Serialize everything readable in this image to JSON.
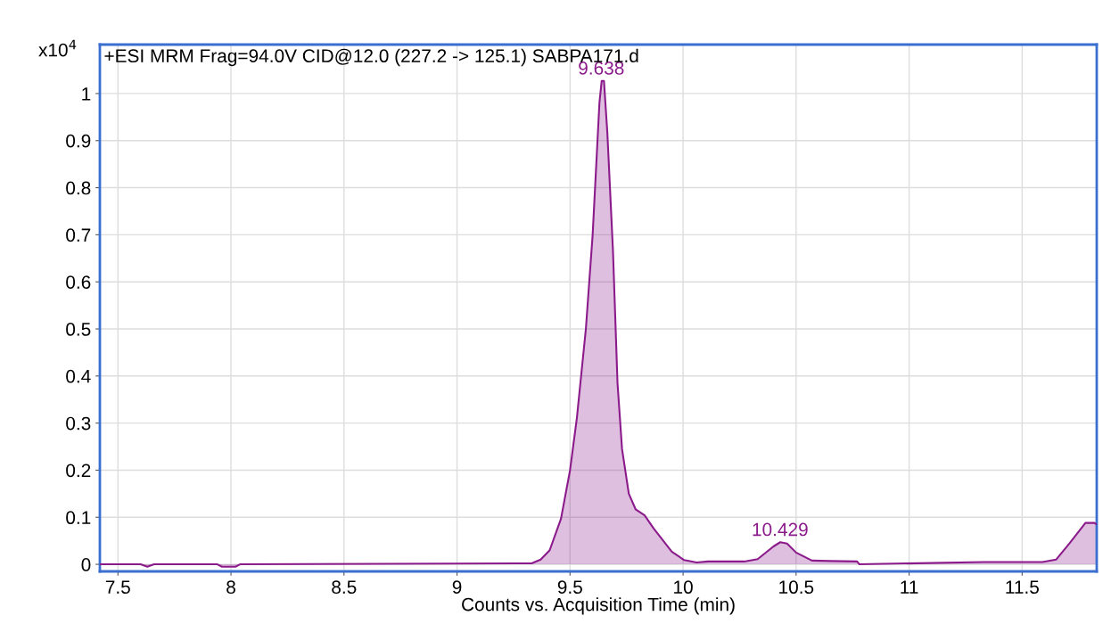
{
  "chart_data": {
    "type": "area",
    "title": "+ESI MRM Frag=94.0V CID@12.0 (227.2 -> 125.1) SABPA171.d",
    "xlabel": "Counts vs. Acquisition Time (min)",
    "ylabel": "x10$^{4}$",
    "series": [
      {
        "color": "#8b1a8b",
        "x": [
          7.42,
          7.6,
          7.63,
          7.66,
          7.94,
          7.96,
          8.02,
          8.04,
          9.27,
          9.33,
          9.37,
          9.41,
          9.46,
          9.5,
          9.53,
          9.57,
          9.6,
          9.63,
          9.64,
          9.65,
          9.665,
          9.69,
          9.71,
          9.73,
          9.76,
          9.79,
          9.83,
          9.87,
          9.95,
          10.005,
          10.06,
          10.11,
          10.27,
          10.33,
          10.4,
          10.43,
          10.46,
          10.5,
          10.57,
          10.65,
          10.77,
          10.78,
          11.33,
          11.59,
          11.65,
          11.71,
          11.78,
          11.82,
          11.83
        ],
        "values": [
          0,
          0,
          -0.005,
          0,
          0,
          -0.005,
          -0.005,
          0,
          0.002,
          0.002,
          0.01,
          0.03,
          0.097,
          0.2,
          0.31,
          0.5,
          0.7,
          0.98,
          1.027,
          1.027,
          0.917,
          0.665,
          0.385,
          0.245,
          0.15,
          0.117,
          0.104,
          0.076,
          0.027,
          0.009,
          0.004,
          0.006,
          0.006,
          0.011,
          0.038,
          0.047,
          0.044,
          0.025,
          0.008,
          0.007,
          0.006,
          0,
          0.005,
          0.005,
          0.01,
          0.045,
          0.088,
          0.088,
          0.085
        ]
      }
    ],
    "annotations": [
      {
        "text": "9.638",
        "x": 9.638,
        "y": 1.027
      },
      {
        "text": "10.429",
        "x": 10.429,
        "y": 0.047
      }
    ],
    "xlim": [
      7.42,
      11.83
    ],
    "xticks": [
      7.5,
      8,
      8.5,
      9,
      9.5,
      10,
      10.5,
      11,
      11.5
    ],
    "ylim": [
      -0.015,
      1.104
    ],
    "yticks": [
      0,
      0.1,
      0.2,
      0.3,
      0.4,
      0.5,
      0.6,
      0.7,
      0.8,
      0.9,
      1
    ],
    "grid": true,
    "marker": "none",
    "line_style": "solid"
  }
}
